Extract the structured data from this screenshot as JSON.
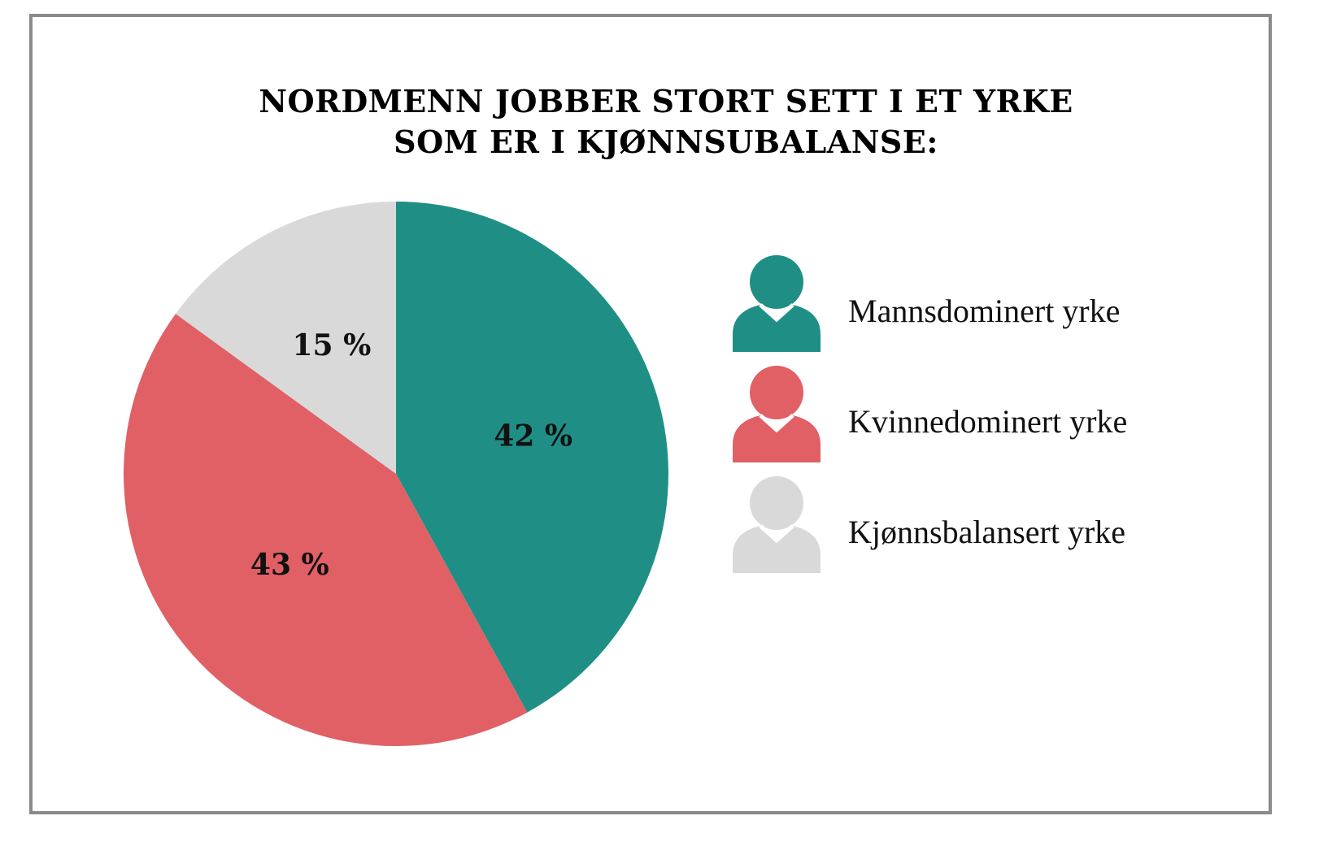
{
  "chart_data": {
    "type": "pie",
    "title_lines": [
      "NORDMENN JOBBER STORT SETT I ET YRKE",
      "SOM ER I KJØNNSUBALANSE:"
    ],
    "slices": [
      {
        "label": "Mannsdominert yrke",
        "value": 42,
        "display": "42 %",
        "color": "#1f8f86"
      },
      {
        "label": "Kvinnedominert yrke",
        "value": 43,
        "display": "43 %",
        "color": "#e06066"
      },
      {
        "label": "Kjønnsbalansert yrke",
        "value": 15,
        "display": "15 %",
        "color": "#d9d9d9"
      }
    ],
    "legend_position": "right",
    "legend": [
      {
        "label": "Mannsdominert yrke",
        "icon": "person-icon",
        "color": "#1f8f86"
      },
      {
        "label": "Kvinnedominert yrke",
        "icon": "person-icon",
        "color": "#e06066"
      },
      {
        "label": "Kjønnsbalansert yrke",
        "icon": "person-icon",
        "color": "#d9d9d9"
      }
    ]
  }
}
